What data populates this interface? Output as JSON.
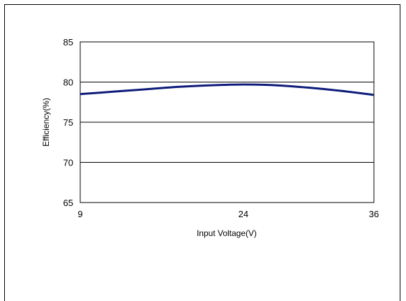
{
  "chart_data": {
    "type": "line",
    "title": "",
    "xlabel": "Input Voltage(V)",
    "ylabel": "Efficiency(%)",
    "x_ticks": [
      9,
      24,
      36
    ],
    "y_ticks": [
      65,
      70,
      75,
      80,
      85
    ],
    "xlim": [
      9,
      36
    ],
    "ylim": [
      65,
      85
    ],
    "grid": "horizontal",
    "legend": "none",
    "series": [
      {
        "color": "#0d1b7a",
        "x": [
          9,
          12,
          15,
          18,
          21,
          24,
          27,
          30,
          33,
          36
        ],
        "y": [
          78.5,
          78.8,
          79.1,
          79.4,
          79.6,
          79.7,
          79.6,
          79.3,
          78.9,
          78.4
        ]
      }
    ]
  }
}
